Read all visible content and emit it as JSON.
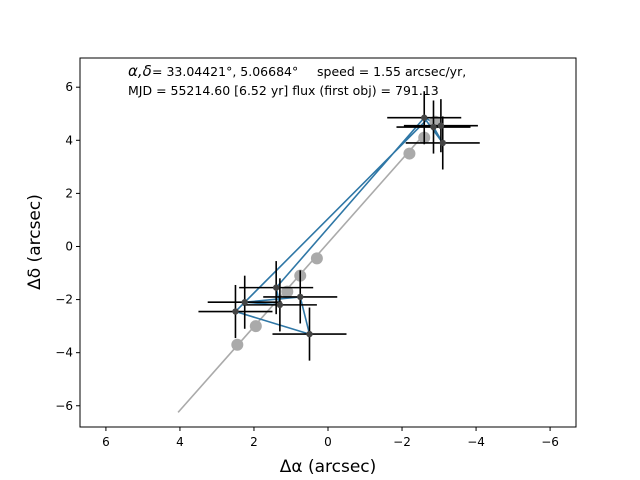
{
  "chart_data": {
    "type": "scatter",
    "xlabel": "Δα (arcsec)",
    "ylabel": "Δδ (arcsec)",
    "xlim": [
      6.7,
      -6.7
    ],
    "ylim": [
      -6.8,
      7.1
    ],
    "x_ticks": [
      6,
      4,
      2,
      0,
      -2,
      -4,
      -6
    ],
    "y_ticks": [
      -6,
      -4,
      -2,
      0,
      2,
      4,
      6
    ],
    "annotation": {
      "line1_symbol": "α,δ",
      "line1_rest": "= 33.04421°, 5.06684°",
      "line1_speed": "speed = 1.55 arcsec/yr,",
      "line2": "MJD = 55214.60 [6.52 yr]   flux (first obj) = 791.13"
    },
    "model_line": {
      "color": "#aaaaaa",
      "points": [
        [
          4.05,
          -6.25
        ],
        [
          -2.55,
          4.15
        ]
      ]
    },
    "model_points": {
      "color": "#aaaaaa",
      "x": [
        2.45,
        1.95,
        1.1,
        0.75,
        0.3,
        -2.2,
        -2.6,
        -2.9
      ],
      "y": [
        -3.7,
        -3.0,
        -1.7,
        -1.1,
        -0.45,
        3.5,
        4.1,
        4.7
      ]
    },
    "track_line": {
      "color": "#2f77a6",
      "x": [
        1.4,
        -2.6,
        -3.05,
        -2.85,
        -3.1,
        -2.65,
        2.5,
        0.5,
        0.75,
        2.25,
        1.3,
        1.4
      ],
      "y": [
        -1.55,
        4.85,
        4.55,
        4.5,
        3.9,
        4.75,
        -2.45,
        -3.3,
        -1.9,
        -2.1,
        -2.2,
        -1.55
      ]
    },
    "measurements": {
      "color": "#000000",
      "x": [
        1.4,
        1.3,
        0.75,
        2.25,
        2.5,
        0.5,
        -2.6,
        -3.05,
        -2.85,
        -3.1
      ],
      "y": [
        -1.55,
        -2.2,
        -1.9,
        -2.1,
        -2.45,
        -3.3,
        4.85,
        4.55,
        4.5,
        3.9
      ],
      "xerr": [
        1.0,
        1.0,
        1.0,
        1.0,
        1.0,
        1.0,
        1.0,
        1.0,
        1.0,
        1.0
      ],
      "yerr": [
        1.0,
        1.0,
        1.0,
        1.0,
        1.0,
        1.0,
        1.0,
        1.0,
        1.0,
        1.0
      ]
    }
  }
}
